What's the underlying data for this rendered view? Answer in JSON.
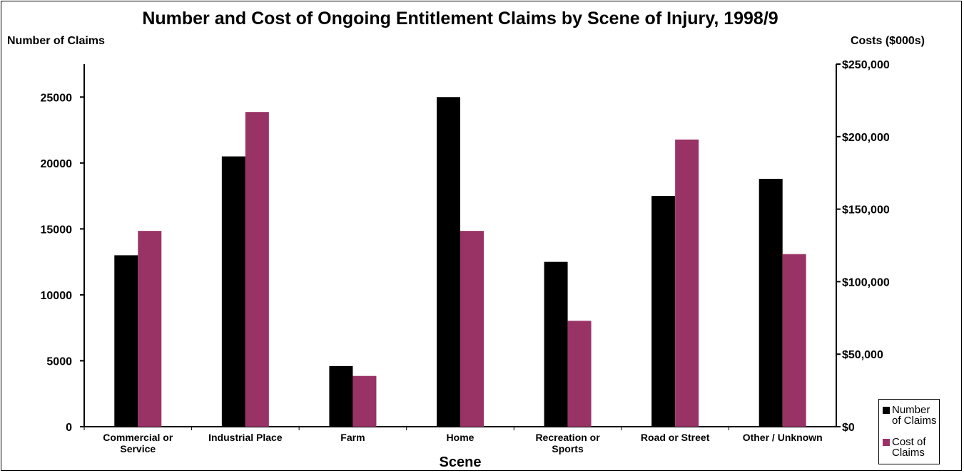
{
  "chart_data": {
    "type": "bar",
    "title": "Number and Cost of Ongoing Entitlement Claims by Scene of Injury, 1998/9",
    "xlabel": "Scene",
    "ylabel_left": "Number of Claims",
    "ylabel_right": "Costs ($000s)",
    "categories": [
      [
        "Commercial or",
        "Service"
      ],
      [
        "Industrial Place"
      ],
      [
        "Farm"
      ],
      [
        "Home"
      ],
      [
        "Recreation or",
        "Sports"
      ],
      [
        "Road  or Street"
      ],
      [
        "Other / Unknown"
      ]
    ],
    "series": [
      {
        "name": "Number of Claims",
        "legend_lines": [
          "Number",
          "of Claims"
        ],
        "axis": "left",
        "color": "#000000",
        "values": [
          13000,
          20500,
          4600,
          25000,
          12500,
          17500,
          18800
        ]
      },
      {
        "name": "Cost of Claims",
        "legend_lines": [
          "Cost of",
          "Claims"
        ],
        "axis": "right",
        "color": "#993366",
        "values": [
          135000,
          217000,
          35000,
          135000,
          73000,
          198000,
          119000
        ]
      }
    ],
    "ylim_left": [
      0,
      27500
    ],
    "yticks_left": [
      0,
      5000,
      10000,
      15000,
      20000,
      25000
    ],
    "ylim_right": [
      0,
      250000
    ],
    "yticks_right": [
      0,
      50000,
      100000,
      150000,
      200000,
      250000
    ],
    "ytick_labels_right": [
      "$0",
      "$50,000",
      "$100,000",
      "$150,000",
      "$200,000",
      "$250,000"
    ],
    "grid": false,
    "legend_position": "bottom-right"
  }
}
